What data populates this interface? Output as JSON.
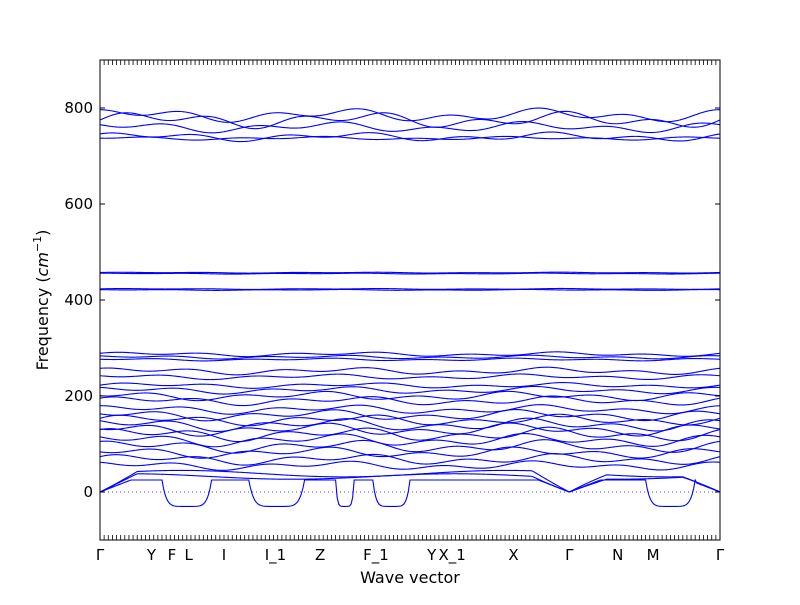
{
  "chart_data": {
    "type": "line",
    "title": "",
    "xlabel": "Wave vector",
    "ylabel": "Frequency",
    "ylabel_unit": "cm",
    "ylabel_unit_exp": "−1",
    "ylim": [
      -100,
      900
    ],
    "y_ticks": [
      0,
      200,
      400,
      600,
      800
    ],
    "y_tick_labels": [
      "0",
      "200",
      "400",
      "600",
      "800"
    ],
    "xlim": [
      0,
      1
    ],
    "kpoints": [
      {
        "label": "Γ",
        "x": 0.0
      },
      {
        "label": "Y",
        "x": 0.083
      },
      {
        "label": "F",
        "x": 0.116
      },
      {
        "label": "L",
        "x": 0.143
      },
      {
        "label": "I",
        "x": 0.2
      },
      {
        "label": "I_1",
        "x": 0.283
      },
      {
        "label": "Z",
        "x": 0.355
      },
      {
        "label": "F_1",
        "x": 0.445
      },
      {
        "label": "Y",
        "x": 0.535
      },
      {
        "label": "X_1",
        "x": 0.568
      },
      {
        "label": "X",
        "x": 0.667
      },
      {
        "label": "Γ",
        "x": 0.757
      },
      {
        "label": "N",
        "x": 0.835
      },
      {
        "label": "M",
        "x": 0.892
      },
      {
        "label": "Γ",
        "x": 1.0
      }
    ],
    "zero_line": 0,
    "grid": false,
    "line_color": "#0000ff",
    "series": [
      {
        "kind": "flat",
        "base": 775,
        "amp": 18,
        "phase": 0.0
      },
      {
        "kind": "flat",
        "base": 785,
        "amp": 15,
        "phase": 1.3
      },
      {
        "kind": "flat",
        "base": 760,
        "amp": 12,
        "phase": 2.1
      },
      {
        "kind": "flat",
        "base": 740,
        "amp": 10,
        "phase": 0.7
      },
      {
        "kind": "flat",
        "base": 737,
        "amp": 4,
        "phase": 2.9
      },
      {
        "kind": "flat",
        "base": 457,
        "amp": 1,
        "phase": 0.3
      },
      {
        "kind": "flat",
        "base": 455,
        "amp": 1,
        "phase": 1.1
      },
      {
        "kind": "flat",
        "base": 423,
        "amp": 1,
        "phase": 0.2
      },
      {
        "kind": "flat",
        "base": 421,
        "amp": 1,
        "phase": 1.9
      },
      {
        "kind": "flat",
        "base": 287,
        "amp": 5,
        "phase": 0.4
      },
      {
        "kind": "flat",
        "base": 281,
        "amp": 4,
        "phase": 1.7
      },
      {
        "kind": "flat",
        "base": 276,
        "amp": 3,
        "phase": 2.5
      },
      {
        "kind": "flat",
        "base": 252,
        "amp": 8,
        "phase": 0.9
      },
      {
        "kind": "flat",
        "base": 240,
        "amp": 6,
        "phase": 2.2
      },
      {
        "kind": "flat",
        "base": 222,
        "amp": 6,
        "phase": 0.1
      },
      {
        "kind": "flat",
        "base": 212,
        "amp": 8,
        "phase": 1.5
      },
      {
        "kind": "flat",
        "base": 200,
        "amp": 10,
        "phase": 2.8
      },
      {
        "kind": "flat",
        "base": 190,
        "amp": 10,
        "phase": 0.6
      },
      {
        "kind": "flat",
        "base": 172,
        "amp": 10,
        "phase": 1.2
      },
      {
        "kind": "flat",
        "base": 160,
        "amp": 12,
        "phase": 2.4
      },
      {
        "kind": "flat",
        "base": 150,
        "amp": 12,
        "phase": 0.3
      },
      {
        "kind": "flat",
        "base": 140,
        "amp": 14,
        "phase": 1.8
      },
      {
        "kind": "flat",
        "base": 130,
        "amp": 14,
        "phase": 2.7
      },
      {
        "kind": "flat",
        "base": 120,
        "amp": 15,
        "phase": 0.8
      },
      {
        "kind": "flat",
        "base": 108,
        "amp": 14,
        "phase": 2.0
      },
      {
        "kind": "flat",
        "base": 95,
        "amp": 14,
        "phase": 1.0
      },
      {
        "kind": "flat",
        "base": 82,
        "amp": 12,
        "phase": 2.6
      },
      {
        "kind": "flat",
        "base": 68,
        "amp": 12,
        "phase": 0.5
      },
      {
        "kind": "flat",
        "base": 55,
        "amp": 10,
        "phase": 1.6
      },
      {
        "kind": "acoustic",
        "max": 45,
        "phase": 0.0
      },
      {
        "kind": "acoustic",
        "max": 38,
        "phase": 1.0
      },
      {
        "kind": "soft",
        "hi": 25,
        "lo": -30
      }
    ]
  }
}
